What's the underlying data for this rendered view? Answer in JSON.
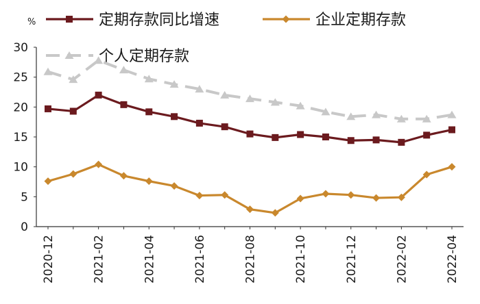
{
  "chart_data": {
    "type": "line",
    "unit": "%",
    "categories": [
      "2020-12",
      "2021-01",
      "2021-02",
      "2021-03",
      "2021-04",
      "2021-05",
      "2021-06",
      "2021-07",
      "2021-08",
      "2021-09",
      "2021-10",
      "2021-11",
      "2021-12",
      "2022-01",
      "2022-02",
      "2022-03",
      "2022-04"
    ],
    "x_tick_labels": [
      "2020-12",
      "2021-02",
      "2021-04",
      "2021-06",
      "2021-08",
      "2021-10",
      "2021-12",
      "2022-02",
      "2022-04"
    ],
    "ylim": [
      0,
      30
    ],
    "y_ticks": [
      0,
      5,
      10,
      15,
      20,
      25,
      30
    ],
    "grid": false,
    "legend_position": "top",
    "series": [
      {
        "name": "定期存款同比增速",
        "color": "#6b1a1e",
        "marker": "square",
        "dash": "solid",
        "values": [
          19.7,
          19.3,
          22.0,
          20.4,
          19.2,
          18.4,
          17.3,
          16.7,
          15.5,
          14.9,
          15.4,
          15.0,
          14.4,
          14.5,
          14.1,
          15.3,
          16.2
        ]
      },
      {
        "name": "企业定期存款",
        "color": "#c9882d",
        "marker": "diamond",
        "dash": "solid",
        "values": [
          7.6,
          8.8,
          10.4,
          8.5,
          7.6,
          6.8,
          5.2,
          5.3,
          2.9,
          2.3,
          4.7,
          5.5,
          5.3,
          4.8,
          4.9,
          8.7,
          10.0
        ]
      },
      {
        "name": "个人定期存款",
        "color": "#c8c8c8",
        "marker": "triangle",
        "dash": "dashed",
        "values": [
          25.9,
          24.6,
          27.8,
          26.2,
          24.7,
          23.8,
          23.0,
          22.0,
          21.4,
          20.8,
          20.2,
          19.2,
          18.4,
          18.7,
          18.0,
          18.0,
          18.7
        ]
      }
    ]
  }
}
